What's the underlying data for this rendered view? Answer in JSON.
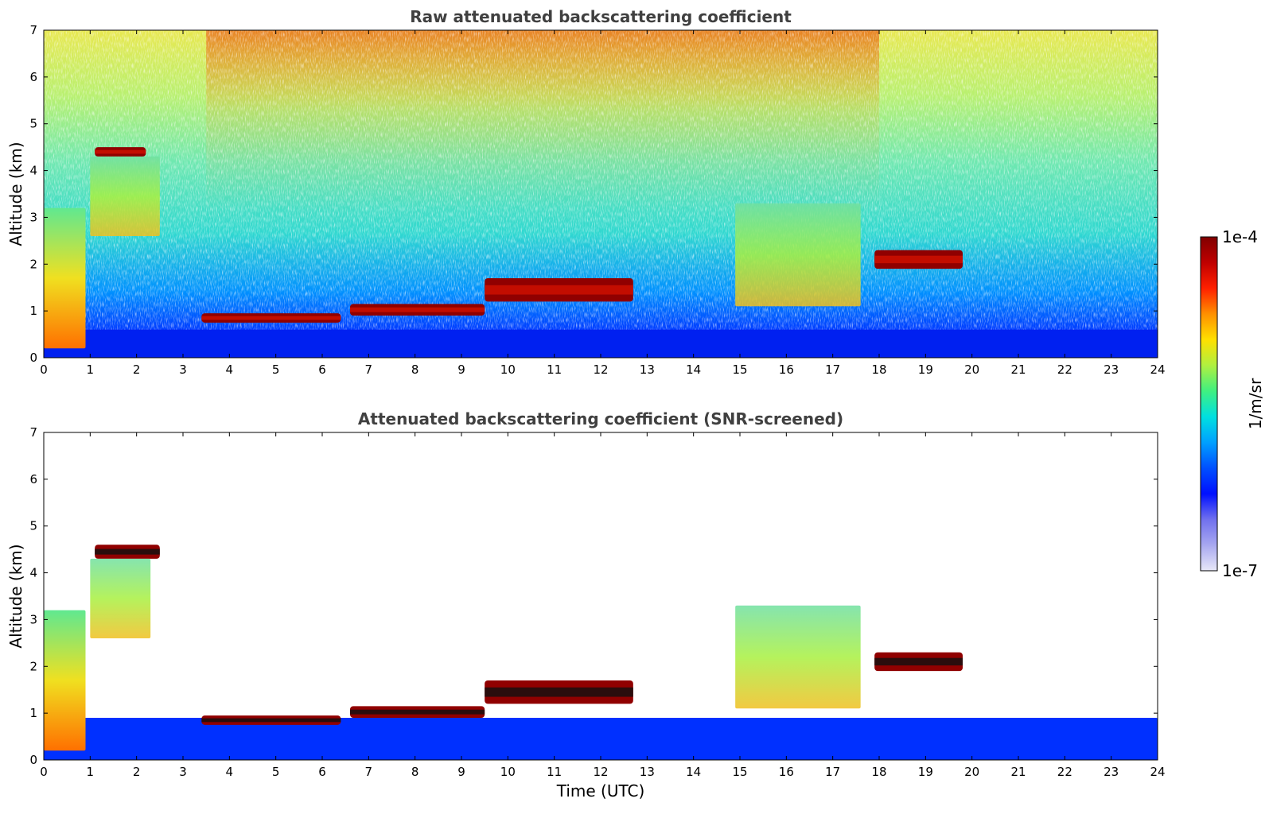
{
  "colorbar": {
    "min_label": "1e-7",
    "max_label": "1e-4",
    "unit": "1/m/sr",
    "scale": "log",
    "range": [
      1e-07,
      0.0001
    ],
    "colors": [
      "#e8e8f8",
      "#a8a8f0",
      "#7070ee",
      "#0010ff",
      "#0050ff",
      "#00a0ff",
      "#00e0e0",
      "#40f080",
      "#b0f040",
      "#ffe000",
      "#ff9000",
      "#ff2000",
      "#c00000",
      "#800000"
    ]
  },
  "chart_data": [
    {
      "type": "heatmap",
      "title": "Raw attenuated backscattering coefficient",
      "xlabel": "",
      "ylabel": "Altitude (km)",
      "xlim": [
        0,
        24
      ],
      "ylim": [
        0,
        7
      ],
      "xticks": [
        "0",
        "1",
        "2",
        "3",
        "4",
        "5",
        "6",
        "7",
        "8",
        "9",
        "10",
        "11",
        "12",
        "13",
        "14",
        "15",
        "16",
        "17",
        "18",
        "19",
        "20",
        "21",
        "22",
        "23",
        "24"
      ],
      "yticks": [
        "0",
        "1",
        "2",
        "3",
        "4",
        "5",
        "6",
        "7"
      ],
      "features": [
        {
          "feature": "surface aerosol layer",
          "t": [
            0,
            24
          ],
          "alt": [
            0,
            0.6
          ],
          "level": "low"
        },
        {
          "feature": "noise background increasing with altitude",
          "t": [
            0,
            24
          ],
          "alt": [
            0.6,
            7
          ],
          "level": "noisy"
        },
        {
          "feature": "cloud",
          "t": [
            1.1,
            2.2
          ],
          "alt": [
            4.3,
            4.5
          ],
          "level": "max"
        },
        {
          "feature": "cloud",
          "t": [
            3.4,
            6.4
          ],
          "alt": [
            0.75,
            0.95
          ],
          "level": "max"
        },
        {
          "feature": "cloud",
          "t": [
            6.6,
            9.5
          ],
          "alt": [
            0.9,
            1.15
          ],
          "level": "max"
        },
        {
          "feature": "cloud",
          "t": [
            9.5,
            12.7
          ],
          "alt": [
            1.2,
            1.7
          ],
          "level": "max"
        },
        {
          "feature": "cloud",
          "t": [
            17.9,
            19.8
          ],
          "alt": [
            1.9,
            2.3
          ],
          "level": "max"
        },
        {
          "feature": "precipitation",
          "t": [
            0,
            0.9
          ],
          "alt": [
            0.2,
            3.2
          ],
          "level": "high"
        },
        {
          "feature": "precipitation",
          "t": [
            1.0,
            2.5
          ],
          "alt": [
            2.6,
            4.3
          ],
          "level": "mid"
        },
        {
          "feature": "precipitation",
          "t": [
            14.9,
            17.6
          ],
          "alt": [
            1.1,
            3.3
          ],
          "level": "mid"
        }
      ]
    },
    {
      "type": "heatmap",
      "title": "Attenuated backscattering coefficient (SNR-screened)",
      "xlabel": "Time (UTC)",
      "ylabel": "Altitude (km)",
      "xlim": [
        0,
        24
      ],
      "ylim": [
        0,
        7
      ],
      "xticks": [
        "0",
        "1",
        "2",
        "3",
        "4",
        "5",
        "6",
        "7",
        "8",
        "9",
        "10",
        "11",
        "12",
        "13",
        "14",
        "15",
        "16",
        "17",
        "18",
        "19",
        "20",
        "21",
        "22",
        "23",
        "24"
      ],
      "yticks": [
        "0",
        "1",
        "2",
        "3",
        "4",
        "5",
        "6",
        "7"
      ],
      "features": [
        {
          "feature": "surface aerosol layer",
          "t": [
            0,
            24
          ],
          "alt": [
            0,
            0.9
          ],
          "level": "low"
        },
        {
          "feature": "cloud",
          "t": [
            1.1,
            2.5
          ],
          "alt": [
            4.3,
            4.6
          ],
          "level": "max"
        },
        {
          "feature": "cloud",
          "t": [
            3.4,
            6.4
          ],
          "alt": [
            0.75,
            0.95
          ],
          "level": "max"
        },
        {
          "feature": "cloud",
          "t": [
            6.6,
            9.5
          ],
          "alt": [
            0.9,
            1.15
          ],
          "level": "max"
        },
        {
          "feature": "cloud",
          "t": [
            9.5,
            12.7
          ],
          "alt": [
            1.2,
            1.7
          ],
          "level": "max"
        },
        {
          "feature": "cloud",
          "t": [
            17.9,
            19.8
          ],
          "alt": [
            1.9,
            2.3
          ],
          "level": "max"
        },
        {
          "feature": "precipitation",
          "t": [
            0,
            0.9
          ],
          "alt": [
            0.2,
            3.2
          ],
          "level": "high"
        },
        {
          "feature": "precipitation",
          "t": [
            1.0,
            2.3
          ],
          "alt": [
            2.6,
            4.3
          ],
          "level": "mid"
        },
        {
          "feature": "precipitation",
          "t": [
            14.9,
            17.6
          ],
          "alt": [
            1.1,
            3.3
          ],
          "level": "mid"
        }
      ]
    }
  ]
}
